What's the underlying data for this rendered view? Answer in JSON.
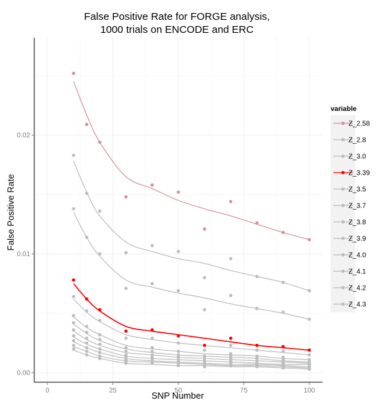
{
  "chart_data": {
    "type": "line",
    "title_lines": [
      "False Positive Rate for FORGE analysis,",
      "1000 trials on ENCODE and ERC"
    ],
    "xlabel": "SNP Number",
    "ylabel": "False Positive Rate",
    "xlim": [
      -5,
      105
    ],
    "ylim": [
      -0.0008,
      0.0282
    ],
    "x_ticks": [
      0,
      25,
      50,
      75,
      100
    ],
    "x_tick_labels": [
      "0",
      "25",
      "50",
      "75",
      "100"
    ],
    "y_ticks": [
      0.0,
      0.01,
      0.02
    ],
    "y_tick_labels": [
      "0.00",
      "0.01",
      "0.02"
    ],
    "grid": true,
    "legend": {
      "title": "variable",
      "position": "right"
    },
    "x": [
      10,
      15,
      20,
      30,
      40,
      50,
      60,
      70,
      80,
      90,
      100
    ],
    "series": [
      {
        "name": "Z_2.58",
        "color": "#d4919b",
        "points": [
          0.0252,
          0.0209,
          0.0194,
          0.0148,
          0.0158,
          0.0152,
          0.0121,
          0.0144,
          0.0126,
          0.0118,
          0.0112
        ],
        "fit": [
          0.0245,
          0.0217,
          0.0194,
          0.0165,
          0.0155,
          0.0145,
          0.0138,
          0.0132,
          0.0125,
          0.0118,
          0.0112
        ]
      },
      {
        "name": "Z_2.8",
        "color": "#bdbdbd",
        "points": [
          0.0183,
          0.0151,
          0.0136,
          0.0101,
          0.0107,
          0.0102,
          0.008,
          0.0096,
          0.0081,
          0.0076,
          0.0069
        ],
        "fit": [
          0.0178,
          0.0152,
          0.0132,
          0.011,
          0.0102,
          0.0096,
          0.0092,
          0.0086,
          0.0081,
          0.0076,
          0.0069
        ]
      },
      {
        "name": "Z_3.0",
        "color": "#bdbdbd",
        "points": [
          0.0138,
          0.0114,
          0.01,
          0.0071,
          0.0075,
          0.0069,
          0.0053,
          0.0065,
          0.0054,
          0.0051,
          0.0045
        ],
        "fit": [
          0.0135,
          0.0114,
          0.0098,
          0.0078,
          0.0072,
          0.0067,
          0.0063,
          0.0058,
          0.0054,
          0.005,
          0.0045
        ]
      },
      {
        "name": "Z_3.39",
        "color": "#ff0000",
        "points": [
          0.0078,
          0.0062,
          0.0053,
          0.0035,
          0.0036,
          0.0031,
          0.0023,
          0.0029,
          0.0023,
          0.0022,
          0.0019
        ],
        "fit": [
          0.0075,
          0.0062,
          0.0052,
          0.0039,
          0.0035,
          0.0032,
          0.0029,
          0.0026,
          0.0023,
          0.0021,
          0.0019
        ]
      },
      {
        "name": "Z_3.5",
        "color": "#bdbdbd",
        "points": [
          0.0064,
          0.0052,
          0.0044,
          0.0029,
          0.0029,
          0.0025,
          0.0019,
          0.0023,
          0.0019,
          0.0018,
          0.0015
        ],
        "fit": [
          0.0062,
          0.0051,
          0.0043,
          0.0032,
          0.0028,
          0.0025,
          0.0023,
          0.0021,
          0.0019,
          0.0017,
          0.0015
        ]
      },
      {
        "name": "Z_3.7",
        "color": "#bdbdbd",
        "points": [
          0.0048,
          0.0039,
          0.0032,
          0.0021,
          0.0021,
          0.0018,
          0.0014,
          0.0016,
          0.0014,
          0.0013,
          0.0011
        ],
        "fit": [
          0.0047,
          0.0038,
          0.0032,
          0.0023,
          0.002,
          0.0018,
          0.0016,
          0.0015,
          0.0014,
          0.0012,
          0.0011
        ]
      },
      {
        "name": "Z_3.8",
        "color": "#bdbdbd",
        "points": [
          0.0042,
          0.0034,
          0.0028,
          0.0018,
          0.0018,
          0.0015,
          0.0012,
          0.0014,
          0.0012,
          0.0011,
          0.0009
        ],
        "fit": [
          0.0041,
          0.0033,
          0.0027,
          0.002,
          0.0017,
          0.0015,
          0.0014,
          0.0013,
          0.0012,
          0.001,
          0.0009
        ]
      },
      {
        "name": "Z_3.9",
        "color": "#bdbdbd",
        "points": [
          0.0036,
          0.0029,
          0.0024,
          0.0015,
          0.0015,
          0.0013,
          0.001,
          0.0012,
          0.001,
          0.0009,
          0.0008
        ],
        "fit": [
          0.0035,
          0.0028,
          0.0023,
          0.0017,
          0.0015,
          0.0013,
          0.0012,
          0.0011,
          0.001,
          0.0009,
          0.0008
        ]
      },
      {
        "name": "Z_4.0",
        "color": "#bdbdbd",
        "points": [
          0.0031,
          0.0025,
          0.002,
          0.0013,
          0.0013,
          0.0011,
          0.0008,
          0.001,
          0.0008,
          0.0008,
          0.0007
        ],
        "fit": [
          0.003,
          0.0024,
          0.002,
          0.0014,
          0.0012,
          0.0011,
          0.001,
          0.0009,
          0.0008,
          0.0007,
          0.0007
        ]
      },
      {
        "name": "Z_4.1",
        "color": "#bdbdbd",
        "points": [
          0.0027,
          0.0021,
          0.0017,
          0.0011,
          0.0011,
          0.0009,
          0.0007,
          0.0008,
          0.0007,
          0.0006,
          0.0005
        ],
        "fit": [
          0.0026,
          0.0021,
          0.0017,
          0.0012,
          0.001,
          0.0009,
          0.0008,
          0.0007,
          0.0007,
          0.0006,
          0.0005
        ]
      },
      {
        "name": "Z_4.2",
        "color": "#bdbdbd",
        "points": [
          0.0023,
          0.0018,
          0.0014,
          0.0009,
          0.0009,
          0.0008,
          0.0006,
          0.0007,
          0.0006,
          0.0005,
          0.0004
        ],
        "fit": [
          0.0022,
          0.0018,
          0.0014,
          0.001,
          0.0009,
          0.0008,
          0.0007,
          0.0006,
          0.0006,
          0.0005,
          0.0004
        ]
      },
      {
        "name": "Z_4.3",
        "color": "#bdbdbd",
        "points": [
          0.002,
          0.0015,
          0.0012,
          0.0008,
          0.0008,
          0.0006,
          0.0005,
          0.0006,
          0.0005,
          0.0004,
          0.0003
        ],
        "fit": [
          0.0019,
          0.0015,
          0.0012,
          0.0008,
          0.0007,
          0.0006,
          0.0006,
          0.0005,
          0.0005,
          0.0004,
          0.0003
        ]
      }
    ]
  }
}
